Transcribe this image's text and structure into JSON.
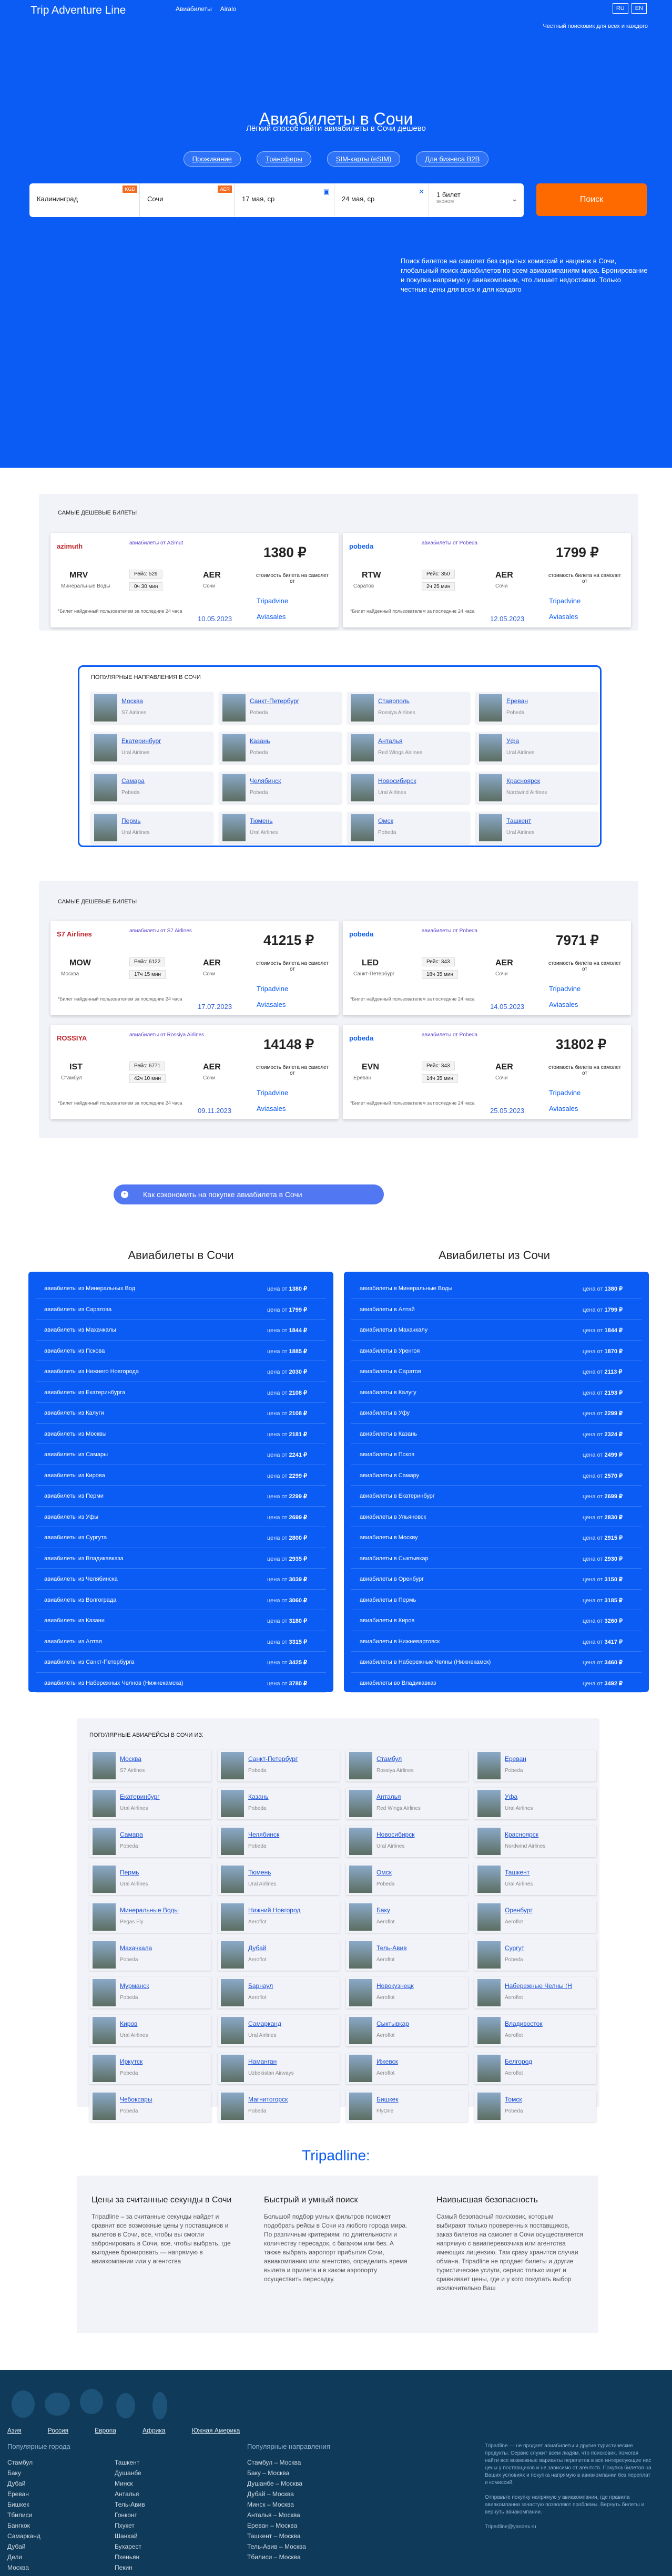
{
  "header": {
    "logo": "Trip Adventure Line",
    "nav": [
      "Авиабилеты",
      "Airalo"
    ],
    "langs": [
      "RU",
      "EN"
    ],
    "motto": "Честный поисковик для всех и каждого"
  },
  "hero": {
    "title": "Авиабилеты в Сочи",
    "subtitle": "Лёгкий способ найти авиабилеты в Сочи дешево",
    "pills": [
      "Проживание",
      "Трансферы",
      "SIM-карты (eSIM)",
      "Для бизнеса B2B"
    ],
    "form": {
      "from": "Калининград",
      "from_tag": "KGD",
      "to": "Сочи",
      "to_tag": "AER",
      "date1": "17 мая, ср",
      "date2": "24 мая, ср",
      "pass": "1 билет",
      "pass2": "эконом",
      "button": "Поиск"
    },
    "desc": "Поиск билетов на самолет без скрытых комиссий и наценок в Сочи, глобальный поиск авиабилетов по всем авиакомпаниям мира. Бронирование и покупка напрямую у авиакомпании, что лишает недоставки. Только честные цены для всех и для каждого"
  },
  "cheap": {
    "title": "Самые дешевые билеты",
    "cards": [
      {
        "airline": "azimuth",
        "from_lbl": "авиабилеты от Azimut",
        "price": "1380 ₽",
        "code1": "MRV",
        "city1": "Минеральные Воды",
        "code2": "AER",
        "city2": "Сочи",
        "flight": "Рейс: 529",
        "dur": "0ч 30 мин",
        "date": "10.05.2023"
      },
      {
        "airline": "pobeda",
        "from_lbl": "авиабилеты от Pobeda",
        "price": "1799 ₽",
        "code1": "RTW",
        "city1": "Саратов",
        "code2": "AER",
        "city2": "Сочи",
        "flight": "Рейс: 350",
        "dur": "2ч 25 мин",
        "date": "12.05.2023"
      }
    ],
    "note": "стоимость билета на самолет от",
    "foot": "*Билет найденный пользователем за последние 24 часа",
    "tp": "Tripadvine",
    "av": "Aviasales"
  },
  "dest": {
    "title": "Популярные направления в Сочи",
    "items": [
      {
        "city": "Москва",
        "air": "S7 Airlines"
      },
      {
        "city": "Санкт-Петербург",
        "air": "Pobeda"
      },
      {
        "city": "Ставрполь",
        "air": "Rossiya Airlines"
      },
      {
        "city": "Ереван",
        "air": "Pobeda"
      },
      {
        "city": "Екатеринбург",
        "air": "Ural Airlines"
      },
      {
        "city": "Казань",
        "air": "Pobeda"
      },
      {
        "city": "Анталья",
        "air": "Red Wings Airlines"
      },
      {
        "city": "Уфа",
        "air": "Ural Airlines"
      },
      {
        "city": "Самара",
        "air": "Pobeda"
      },
      {
        "city": "Челябинск",
        "air": "Pobeda"
      },
      {
        "city": "Новосибирск",
        "air": "Ural Airlines"
      },
      {
        "city": "Красноярск",
        "air": "Nordwind Airlines"
      },
      {
        "city": "Пермь",
        "air": "Ural Airlines"
      },
      {
        "city": "Тюмень",
        "air": "Ural Airlines"
      },
      {
        "city": "Омск",
        "air": "Pobeda"
      },
      {
        "city": "Ташкент",
        "air": "Ural Airlines"
      }
    ]
  },
  "popular": {
    "title": "Самые популярные билеты",
    "cards": [
      {
        "airline": "S7 Airlines",
        "from_lbl": "авиабилеты от S7 Airlines",
        "price": "41215 ₽",
        "code1": "MOW",
        "city1": "Москва",
        "code2": "AER",
        "city2": "Сочи",
        "flight": "Рейс: 6122",
        "dur": "17ч 15 мин",
        "date": "17.07.2023"
      },
      {
        "airline": "pobeda",
        "from_lbl": "авиабилеты от Pobeda",
        "price": "7971 ₽",
        "code1": "LED",
        "city1": "Санкт-Петербург",
        "code2": "AER",
        "city2": "Сочи",
        "flight": "Рейс: 343",
        "dur": "18ч 35 мин",
        "date": "14.05.2023"
      },
      {
        "airline": "ROSSIYA",
        "from_lbl": "авиабилеты от Rossiya Airlines",
        "price": "14148 ₽",
        "code1": "IST",
        "city1": "Стамбул",
        "code2": "AER",
        "city2": "Сочи",
        "flight": "Рейс: 6771",
        "dur": "42ч 10 мин",
        "date": "09.11.2023"
      },
      {
        "airline": "pobeda",
        "from_lbl": "авиабилеты от Pobeda",
        "price": "31802 ₽",
        "code1": "EVN",
        "city1": "Ереван",
        "code2": "AER",
        "city2": "Сочи",
        "flight": "Рейс: 343",
        "dur": "14ч 35 мин",
        "date": "25.05.2023"
      }
    ]
  },
  "how": "Как сэкономить на покупке авиабилета в Сочи",
  "to_sochi": {
    "title": "Авиабилеты в Сочи",
    "rows": [
      {
        "t": "авиабилеты из Минеральных Вод",
        "p": "1380 ₽"
      },
      {
        "t": "авиабилеты из Саратова",
        "p": "1799 ₽"
      },
      {
        "t": "авиабилеты из Махачкалы",
        "p": "1844 ₽"
      },
      {
        "t": "авиабилеты из Пскова",
        "p": "1885 ₽"
      },
      {
        "t": "авиабилеты из Нижнего Новгорода",
        "p": "2030 ₽"
      },
      {
        "t": "авиабилеты из Екатеринбурга",
        "p": "2108 ₽"
      },
      {
        "t": "авиабилеты из Калуги",
        "p": "2108 ₽"
      },
      {
        "t": "авиабилеты из Москвы",
        "p": "2181 ₽"
      },
      {
        "t": "авиабилеты из Самары",
        "p": "2241 ₽"
      },
      {
        "t": "авиабилеты из Кирова",
        "p": "2299 ₽"
      },
      {
        "t": "авиабилеты из Перми",
        "p": "2299 ₽"
      },
      {
        "t": "авиабилеты из Уфы",
        "p": "2699 ₽"
      },
      {
        "t": "авиабилеты из Сургута",
        "p": "2800 ₽"
      },
      {
        "t": "авиабилеты из Владикавказа",
        "p": "2935 ₽"
      },
      {
        "t": "авиабилеты из Челябинска",
        "p": "3039 ₽"
      },
      {
        "t": "авиабилеты из Волгограда",
        "p": "3060 ₽"
      },
      {
        "t": "авиабилеты из Казани",
        "p": "3180 ₽"
      },
      {
        "t": "авиабилеты из Алтая",
        "p": "3315 ₽"
      },
      {
        "t": "авиабилеты из Санкт-Петербурга",
        "p": "3425 ₽"
      },
      {
        "t": "авиабилеты из Набережных Челнов (Нижнекамска)",
        "p": "3780 ₽"
      }
    ]
  },
  "from_sochi": {
    "title": "Авиабилеты из Сочи",
    "rows": [
      {
        "t": "авиабилеты в Минеральные Воды",
        "p": "1380 ₽"
      },
      {
        "t": "авиабилеты в Алтай",
        "p": "1799 ₽"
      },
      {
        "t": "авиабилеты в Махачкалу",
        "p": "1844 ₽"
      },
      {
        "t": "авиабилеты в Уренгоя",
        "p": "1870 ₽"
      },
      {
        "t": "авиабилеты в Саратов",
        "p": "2113 ₽"
      },
      {
        "t": "авиабилеты в Калугу",
        "p": "2193 ₽"
      },
      {
        "t": "авиабилеты в Уфу",
        "p": "2299 ₽"
      },
      {
        "t": "авиабилеты в Казань",
        "p": "2324 ₽"
      },
      {
        "t": "авиабилеты в Псков",
        "p": "2499 ₽"
      },
      {
        "t": "авиабилеты в Самару",
        "p": "2570 ₽"
      },
      {
        "t": "авиабилеты в Екатеринбург",
        "p": "2699 ₽"
      },
      {
        "t": "авиабилеты в Ульяновск",
        "p": "2830 ₽"
      },
      {
        "t": "авиабилеты в Москву",
        "p": "2915 ₽"
      },
      {
        "t": "авиабилеты в Сыктывкар",
        "p": "2930 ₽"
      },
      {
        "t": "авиабилеты в Оренбург",
        "p": "3150 ₽"
      },
      {
        "t": "авиабилеты в Пермь",
        "p": "3185 ₽"
      },
      {
        "t": "авиабилеты в Киров",
        "p": "3260 ₽"
      },
      {
        "t": "авиабилеты в Нижневартовск",
        "p": "3417 ₽"
      },
      {
        "t": "авиабилеты в Набережные Челны (Нижнекамск)",
        "p": "3460 ₽"
      },
      {
        "t": "авиабилеты во Владикавказ",
        "p": "3492 ₽"
      }
    ]
  },
  "pop_airports": {
    "title": "Популярные авиарейсы в Сочи из:",
    "items": [
      {
        "city": "Москва",
        "air": "S7 Airlines"
      },
      {
        "city": "Санкт-Петербург",
        "air": "Pobeda"
      },
      {
        "city": "Стамбул",
        "air": "Rossiya Airlines"
      },
      {
        "city": "Ереван",
        "air": "Pobeda"
      },
      {
        "city": "Екатеринбург",
        "air": "Ural Airlines"
      },
      {
        "city": "Казань",
        "air": "Pobeda"
      },
      {
        "city": "Анталья",
        "air": "Red Wings Airlines"
      },
      {
        "city": "Уфа",
        "air": "Ural Airlines"
      },
      {
        "city": "Самара",
        "air": "Pobeda"
      },
      {
        "city": "Челябинск",
        "air": "Pobeda"
      },
      {
        "city": "Новосибирск",
        "air": "Ural Airlines"
      },
      {
        "city": "Красноярск",
        "air": "Nordwind Airlines"
      },
      {
        "city": "Пермь",
        "air": "Ural Airlines"
      },
      {
        "city": "Тюмень",
        "air": "Ural Airlines"
      },
      {
        "city": "Омск",
        "air": "Pobeda"
      },
      {
        "city": "Ташкент",
        "air": "Ural Airlines"
      },
      {
        "city": "Минеральные Воды",
        "air": "Pegas Fly"
      },
      {
        "city": "Нижний Новгород",
        "air": "Aeroflot"
      },
      {
        "city": "Баку",
        "air": "Aeroflot"
      },
      {
        "city": "Оренбург",
        "air": "Aeroflot"
      },
      {
        "city": "Махачкала",
        "air": "Pobeda"
      },
      {
        "city": "Дубай",
        "air": "Aeroflot"
      },
      {
        "city": "Тель-Авив",
        "air": "Aeroflot"
      },
      {
        "city": "Сургут",
        "air": "Pobeda"
      },
      {
        "city": "Мурманск",
        "air": "Pobeda"
      },
      {
        "city": "Барнаул",
        "air": "Aeroflot"
      },
      {
        "city": "Новокузнецк",
        "air": "Aeroflot"
      },
      {
        "city": "Набережные Челны (Н",
        "air": "Aeroflot"
      },
      {
        "city": "Киров",
        "air": "Ural Airlines"
      },
      {
        "city": "Самарканд",
        "air": "Ural Airlines"
      },
      {
        "city": "Сыктывкар",
        "air": "Aeroflot"
      },
      {
        "city": "Владивосток",
        "air": "Aeroflot"
      },
      {
        "city": "Иркутск",
        "air": "Pobeda"
      },
      {
        "city": "Наманган",
        "air": "Uzbekistan Airways"
      },
      {
        "city": "Ижевск",
        "air": "Aeroflot"
      },
      {
        "city": "Белгород",
        "air": "Aeroflot"
      },
      {
        "city": "Чебоксары",
        "air": "Pobeda"
      },
      {
        "city": "Магнитогорск",
        "air": "Pobeda"
      },
      {
        "city": "Бишкек",
        "air": "FlyOne"
      },
      {
        "city": "Томск",
        "air": "Pobeda"
      }
    ]
  },
  "tripadline": {
    "title": "Tripadline:",
    "cols": [
      {
        "h": "Цены за считанные секунды в Сочи",
        "t": "Tripadline – за считанные секунды найдет и сравнит все возможные цены у поставщиков и вылетов в Сочи, все, чтобы вы смогли забронировать в Сочи, все, чтобы выбрать, где выгоднее бронировать — напрямую в авиакомпании или у агентства"
      },
      {
        "h": "Быстрый и умный поиск",
        "t": "Большой подбор умных фильтров поможет подобрать рейсы в Сочи из любого города мира. По различным критериям: по длительности и количеству пересадок, с багажом или без. А также выбрать аэропорт прибытия Сочи, авиакомпанию или агентство, определить время вылета и прилета и в каком аэропорту осуществить пересадку."
      },
      {
        "h": "Наивысшая безопасность",
        "t": "Самый безопасный поисковик, которым выбирают только проверенных поставщиков, заказ билетов на самолет в Сочи осуществляется напрямую с авиаперевозчика или агентства имеющих лицензию. Там сразу хранится случаи обмана. Tripadline не продает билеты и другие туристические услуги, сервис только ищет и сравнивает цены, где и у кого покупать выбор исключительно Ваш"
      }
    ]
  },
  "footer": {
    "regions": [
      "Азия",
      "Россия",
      "Европа",
      "Африка",
      "Южная Америка"
    ],
    "cities_h": "Популярные города",
    "cities1": [
      "Стамбул",
      "Баку",
      "Дубай",
      "Ереван",
      "Бишкек",
      "Тбилиси",
      "Бангкок",
      "Самарканд",
      "Дубай",
      "Дели",
      "Москва"
    ],
    "cities2": [
      "Ташкент",
      "Душанбе",
      "Минск",
      "Анталья",
      "Тель-Авив",
      "Гонконг",
      "Пхукет",
      "Шанхай",
      "Бухарест",
      "Пхеньян",
      "Пекин"
    ],
    "dir_h": "Популярные направления",
    "dirs": [
      "Стамбул – Москва",
      "Баку – Москва",
      "Душанбе – Москва",
      "Дубай – Москва",
      "Минск – Москва",
      "Анталья – Москва",
      "Ереван – Москва",
      "Ташкент – Москва",
      "Тель-Авив – Москва",
      "Тбилиси – Москва"
    ],
    "about": "Tripadline — не продает авиабилеты и другие туристические продукты. Сервис служит всем людям, что поисковик, помогая найти все возможные варианты перелетов в все интересующие нас цены у поставщиков и не зависимо от агентств. Покупка билетов на Ваших условиях и покупка напрямую в авиакомпании без переплат и комиссий.",
    "about2": "Отправьте покупку напрямую у авиакомпании, где правила авиакомпании зачастую позволяют проблемы. Вернуть билеты и вернуть авиакомпании.",
    "email": "Tripadline@yandex.ru"
  }
}
